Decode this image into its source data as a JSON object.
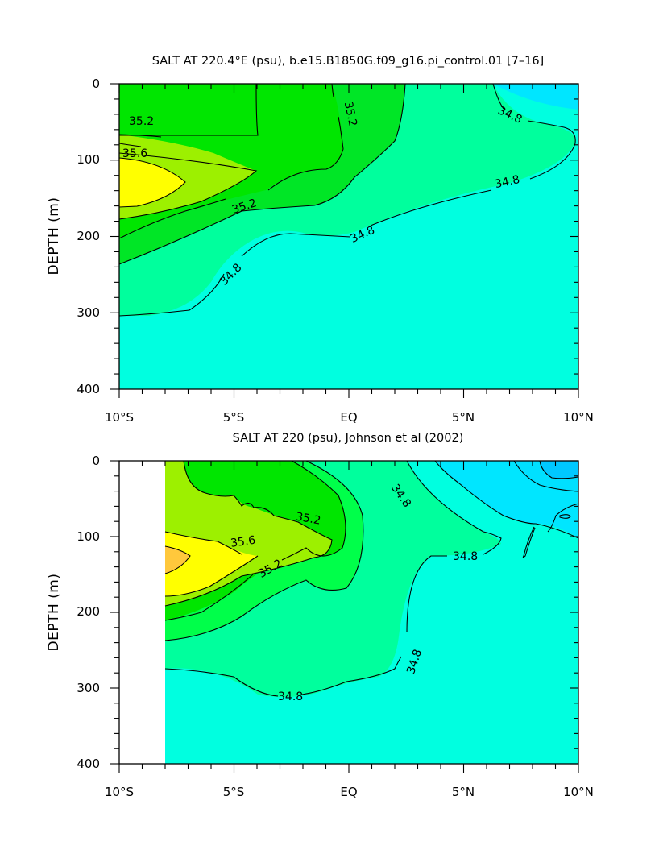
{
  "chart_data": [
    {
      "type": "heatmap",
      "title": "SALT AT 220.4°E (psu), b.e15.B1850G.f09_g16.pi_control.01 [7–16]",
      "ylabel": "DEPTH (m)",
      "xlabel": "",
      "x_ticks": [
        "10°S",
        "5°S",
        "EQ",
        "5°N",
        "10°N"
      ],
      "y_ticks": [
        "0",
        "100",
        "200",
        "300",
        "400"
      ],
      "xlim": [
        -10,
        10
      ],
      "ylim": [
        400,
        0
      ],
      "contour_labels": [
        "35.2",
        "35.6",
        "35.2",
        "35.2",
        "34.8",
        "34.8",
        "34.8",
        "34.8"
      ],
      "colors": {
        "lt34.8": "#00ffe0",
        "gt34.8": "#00ff9d",
        "gt35.0": "#00e626",
        "gt35.2": "#00e600",
        "gt35.4": "#9df000",
        "gt35.6": "#ffff00",
        "lt34.6": "#00e6ff"
      }
    },
    {
      "type": "heatmap",
      "title": "SALT AT 220 (psu), Johnson et al (2002)",
      "ylabel": "DEPTH (m)",
      "xlabel": "",
      "x_ticks": [
        "10°S",
        "5°S",
        "EQ",
        "5°N",
        "10°N"
      ],
      "y_ticks": [
        "0",
        "100",
        "200",
        "300",
        "400"
      ],
      "xlim": [
        -10,
        10
      ],
      "ylim": [
        400,
        0
      ],
      "contour_labels": [
        "35.2",
        "35.6",
        "35.2",
        "34.8",
        "34.8",
        "34.8",
        "34.8"
      ],
      "colors": {
        "lt34.6": "#00c8ff",
        "lt34.7": "#00e6ff",
        "lt34.8": "#00ffe0",
        "gt34.8": "#00ff9d",
        "gt35.0": "#00ff4a",
        "gt35.2": "#00e600",
        "gt35.4": "#9df000",
        "gt35.6": "#ffff00",
        "gt35.8": "#ffc83c"
      }
    }
  ]
}
